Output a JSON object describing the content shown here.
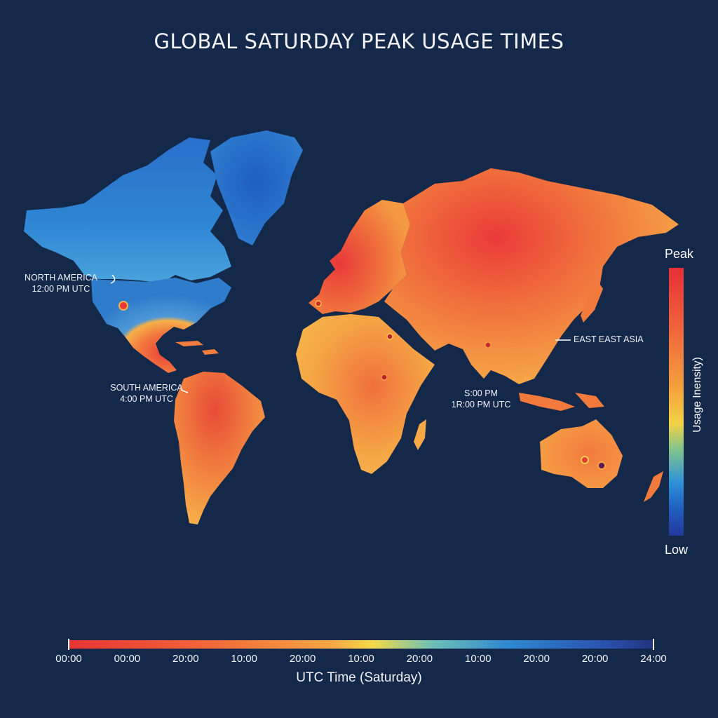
{
  "title": "GLOBAL SATURDAY PEAK USAGE TIMES",
  "callouts": {
    "north_america": {
      "line1": "NORTH AMERICA",
      "line2": "12:00 PM UTC"
    },
    "south_america": {
      "line1": "SOUTH AMERICA",
      "line2": "4:00 PM UTC"
    },
    "south_asia": {
      "line1": "S:00 PM",
      "line2": "1R:00 PM UTC"
    },
    "east_asia": {
      "line1": "EAST EAST ASIA"
    }
  },
  "legend": {
    "top_label": "Peak",
    "bottom_label": "Low",
    "axis_label": "Usage Inensity)"
  },
  "time_axis": {
    "ticks": [
      "00:00",
      "00:00",
      "20:00",
      "10:00",
      "20:00",
      "10:00",
      "20:00",
      "10:00",
      "20:00",
      "20:00",
      "24:00"
    ],
    "label": "UTC Time (Saturday)"
  },
  "colors": {
    "background": "#14284a",
    "peak": "#e52f36",
    "high": "#f0633a",
    "medium": "#f5a13f",
    "mid": "#f2d244",
    "low": "#2f80d0",
    "lowest": "#22379a"
  }
}
